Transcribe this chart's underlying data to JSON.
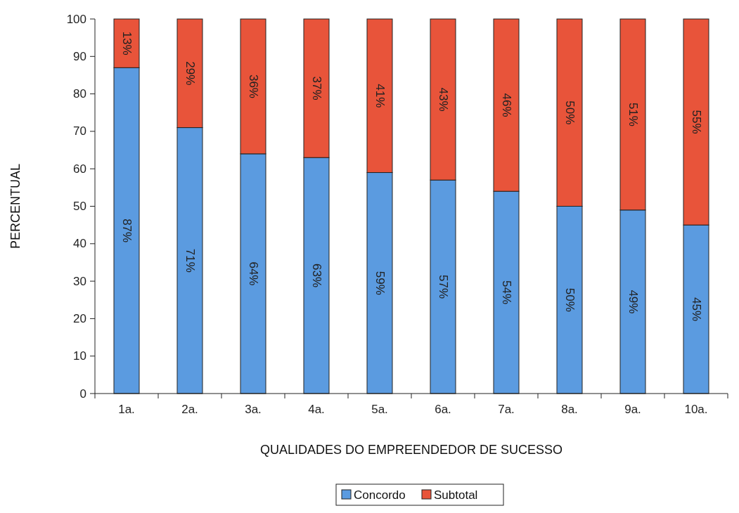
{
  "chart_data": {
    "type": "bar",
    "stacked": true,
    "xlabel": "QUALIDADES DO EMPREENDEDOR DE SUCESSO",
    "ylabel": "PERCENTUAL",
    "categories": [
      "1a.",
      "2a.",
      "3a.",
      "4a.",
      "5a.",
      "6a.",
      "7a.",
      "8a.",
      "9a.",
      "10a."
    ],
    "series": [
      {
        "name": "Concordo",
        "color": "#5b9be0",
        "values": [
          87,
          71,
          64,
          63,
          59,
          57,
          54,
          50,
          49,
          45
        ],
        "value_labels": [
          "87%",
          "71%",
          "64%",
          "63%",
          "59%",
          "57%",
          "54%",
          "50%",
          "49%",
          "45%"
        ]
      },
      {
        "name": "Subtotal",
        "color": "#e8543a",
        "values": [
          13,
          29,
          36,
          37,
          41,
          43,
          46,
          50,
          51,
          55
        ],
        "value_labels": [
          "13%",
          "29%",
          "36%",
          "37%",
          "41%",
          "43%",
          "46%",
          "50%",
          "51%",
          "55%"
        ]
      }
    ],
    "ylim": [
      0,
      100
    ],
    "yticks": [
      0,
      10,
      20,
      30,
      40,
      50,
      60,
      70,
      80,
      90,
      100
    ],
    "grid": false,
    "legend": "bottom"
  }
}
